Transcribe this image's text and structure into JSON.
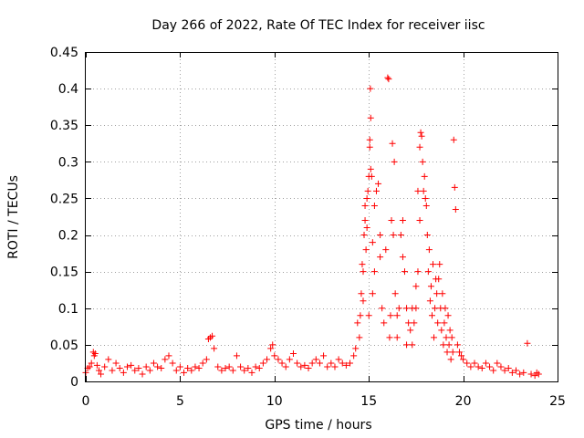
{
  "chart_data": {
    "type": "scatter",
    "title": "Day 266 of 2022, Rate Of TEC Index for receiver iisc",
    "xlabel": "GPS time / hours",
    "ylabel": "ROTI / TECUs",
    "xlim": [
      0,
      25
    ],
    "ylim": [
      0,
      0.45
    ],
    "x_ticks": [
      0,
      5,
      10,
      15,
      20,
      25
    ],
    "y_ticks": [
      0,
      0.05,
      0.1,
      0.15,
      0.2,
      0.25,
      0.3,
      0.35,
      0.4,
      0.45
    ],
    "grid": true,
    "marker": "plus",
    "series": [
      {
        "color": "#ff0000",
        "points": [
          [
            0.0,
            0.012
          ],
          [
            0.1,
            0.018
          ],
          [
            0.2,
            0.02
          ],
          [
            0.3,
            0.025
          ],
          [
            0.4,
            0.04
          ],
          [
            0.45,
            0.035
          ],
          [
            0.5,
            0.038
          ],
          [
            0.6,
            0.022
          ],
          [
            0.7,
            0.015
          ],
          [
            0.8,
            0.01
          ],
          [
            1.0,
            0.02
          ],
          [
            1.2,
            0.03
          ],
          [
            1.4,
            0.015
          ],
          [
            1.6,
            0.025
          ],
          [
            1.8,
            0.018
          ],
          [
            2.0,
            0.012
          ],
          [
            2.2,
            0.02
          ],
          [
            2.4,
            0.022
          ],
          [
            2.6,
            0.015
          ],
          [
            2.8,
            0.018
          ],
          [
            3.0,
            0.01
          ],
          [
            3.2,
            0.02
          ],
          [
            3.4,
            0.015
          ],
          [
            3.6,
            0.025
          ],
          [
            3.8,
            0.02
          ],
          [
            4.0,
            0.018
          ],
          [
            4.2,
            0.03
          ],
          [
            4.4,
            0.035
          ],
          [
            4.6,
            0.025
          ],
          [
            4.8,
            0.015
          ],
          [
            5.0,
            0.02
          ],
          [
            5.2,
            0.012
          ],
          [
            5.4,
            0.018
          ],
          [
            5.6,
            0.015
          ],
          [
            5.8,
            0.02
          ],
          [
            6.0,
            0.018
          ],
          [
            6.2,
            0.025
          ],
          [
            6.4,
            0.03
          ],
          [
            6.5,
            0.058
          ],
          [
            6.6,
            0.06
          ],
          [
            6.7,
            0.062
          ],
          [
            6.8,
            0.045
          ],
          [
            7.0,
            0.02
          ],
          [
            7.2,
            0.015
          ],
          [
            7.4,
            0.018
          ],
          [
            7.6,
            0.02
          ],
          [
            7.8,
            0.015
          ],
          [
            8.0,
            0.035
          ],
          [
            8.2,
            0.02
          ],
          [
            8.4,
            0.015
          ],
          [
            8.6,
            0.018
          ],
          [
            8.8,
            0.012
          ],
          [
            9.0,
            0.02
          ],
          [
            9.2,
            0.018
          ],
          [
            9.4,
            0.025
          ],
          [
            9.6,
            0.03
          ],
          [
            9.8,
            0.045
          ],
          [
            9.9,
            0.05
          ],
          [
            10.0,
            0.035
          ],
          [
            10.2,
            0.03
          ],
          [
            10.4,
            0.025
          ],
          [
            10.6,
            0.02
          ],
          [
            10.8,
            0.03
          ],
          [
            11.0,
            0.038
          ],
          [
            11.2,
            0.025
          ],
          [
            11.4,
            0.02
          ],
          [
            11.6,
            0.022
          ],
          [
            11.8,
            0.018
          ],
          [
            12.0,
            0.025
          ],
          [
            12.2,
            0.03
          ],
          [
            12.4,
            0.025
          ],
          [
            12.6,
            0.035
          ],
          [
            12.8,
            0.02
          ],
          [
            13.0,
            0.025
          ],
          [
            13.2,
            0.02
          ],
          [
            13.4,
            0.03
          ],
          [
            13.6,
            0.025
          ],
          [
            13.8,
            0.022
          ],
          [
            14.0,
            0.025
          ],
          [
            14.2,
            0.035
          ],
          [
            14.3,
            0.045
          ],
          [
            14.4,
            0.08
          ],
          [
            14.5,
            0.06
          ],
          [
            14.6,
            0.12
          ],
          [
            14.7,
            0.15
          ],
          [
            14.75,
            0.2
          ],
          [
            14.8,
            0.22
          ],
          [
            14.85,
            0.18
          ],
          [
            14.9,
            0.25
          ],
          [
            14.95,
            0.26
          ],
          [
            15.0,
            0.28
          ],
          [
            15.05,
            0.33
          ],
          [
            15.08,
            0.4
          ],
          [
            15.1,
            0.36
          ],
          [
            15.15,
            0.28
          ],
          [
            15.2,
            0.19
          ],
          [
            15.3,
            0.15
          ],
          [
            15.4,
            0.26
          ],
          [
            15.5,
            0.27
          ],
          [
            15.6,
            0.2
          ],
          [
            15.7,
            0.1
          ],
          [
            15.8,
            0.08
          ],
          [
            15.9,
            0.18
          ],
          [
            16.0,
            0.415
          ],
          [
            16.05,
            0.413
          ],
          [
            16.2,
            0.22
          ],
          [
            16.3,
            0.2
          ],
          [
            16.4,
            0.12
          ],
          [
            16.5,
            0.09
          ],
          [
            16.6,
            0.1
          ],
          [
            16.7,
            0.2
          ],
          [
            16.8,
            0.22
          ],
          [
            16.9,
            0.15
          ],
          [
            17.0,
            0.1
          ],
          [
            17.1,
            0.08
          ],
          [
            17.2,
            0.07
          ],
          [
            17.3,
            0.05
          ],
          [
            17.4,
            0.08
          ],
          [
            17.5,
            0.1
          ],
          [
            17.6,
            0.15
          ],
          [
            17.7,
            0.22
          ],
          [
            17.75,
            0.34
          ],
          [
            17.8,
            0.335
          ],
          [
            17.85,
            0.3
          ],
          [
            17.9,
            0.26
          ],
          [
            18.0,
            0.25
          ],
          [
            18.1,
            0.2
          ],
          [
            18.2,
            0.18
          ],
          [
            18.3,
            0.13
          ],
          [
            18.4,
            0.16
          ],
          [
            18.5,
            0.1
          ],
          [
            18.6,
            0.12
          ],
          [
            18.7,
            0.14
          ],
          [
            18.8,
            0.1
          ],
          [
            18.9,
            0.12
          ],
          [
            19.0,
            0.08
          ],
          [
            19.1,
            0.06
          ],
          [
            19.2,
            0.09
          ],
          [
            19.3,
            0.07
          ],
          [
            19.4,
            0.06
          ],
          [
            19.5,
            0.33
          ],
          [
            19.55,
            0.265
          ],
          [
            19.6,
            0.235
          ],
          [
            19.7,
            0.05
          ],
          [
            19.8,
            0.04
          ],
          [
            19.9,
            0.035
          ],
          [
            20.0,
            0.03
          ],
          [
            20.2,
            0.025
          ],
          [
            20.4,
            0.02
          ],
          [
            20.6,
            0.025
          ],
          [
            20.8,
            0.02
          ],
          [
            21.0,
            0.018
          ],
          [
            21.2,
            0.025
          ],
          [
            21.4,
            0.02
          ],
          [
            21.6,
            0.015
          ],
          [
            21.8,
            0.025
          ],
          [
            22.0,
            0.02
          ],
          [
            22.2,
            0.015
          ],
          [
            22.4,
            0.018
          ],
          [
            22.6,
            0.012
          ],
          [
            22.8,
            0.015
          ],
          [
            23.0,
            0.01
          ],
          [
            23.2,
            0.012
          ],
          [
            23.4,
            0.052
          ],
          [
            23.6,
            0.01
          ],
          [
            23.8,
            0.008
          ],
          [
            23.9,
            0.012
          ],
          [
            24.0,
            0.01
          ],
          [
            14.55,
            0.09
          ],
          [
            14.65,
            0.16
          ],
          [
            14.7,
            0.11
          ],
          [
            14.8,
            0.24
          ],
          [
            14.9,
            0.21
          ],
          [
            15.0,
            0.09
          ],
          [
            15.05,
            0.32
          ],
          [
            15.1,
            0.29
          ],
          [
            15.2,
            0.12
          ],
          [
            15.3,
            0.24
          ],
          [
            15.6,
            0.17
          ],
          [
            16.1,
            0.06
          ],
          [
            16.15,
            0.09
          ],
          [
            16.25,
            0.325
          ],
          [
            16.35,
            0.3
          ],
          [
            16.5,
            0.06
          ],
          [
            16.8,
            0.17
          ],
          [
            17.0,
            0.05
          ],
          [
            17.3,
            0.1
          ],
          [
            17.5,
            0.13
          ],
          [
            17.6,
            0.26
          ],
          [
            17.7,
            0.32
          ],
          [
            17.95,
            0.28
          ],
          [
            18.05,
            0.24
          ],
          [
            18.15,
            0.15
          ],
          [
            18.25,
            0.11
          ],
          [
            18.35,
            0.09
          ],
          [
            18.45,
            0.06
          ],
          [
            18.55,
            0.14
          ],
          [
            18.65,
            0.08
          ],
          [
            18.75,
            0.16
          ],
          [
            18.85,
            0.07
          ],
          [
            18.95,
            0.05
          ],
          [
            19.05,
            0.1
          ],
          [
            19.15,
            0.04
          ],
          [
            19.25,
            0.05
          ],
          [
            19.35,
            0.03
          ],
          [
            19.45,
            0.04
          ]
        ]
      }
    ]
  }
}
